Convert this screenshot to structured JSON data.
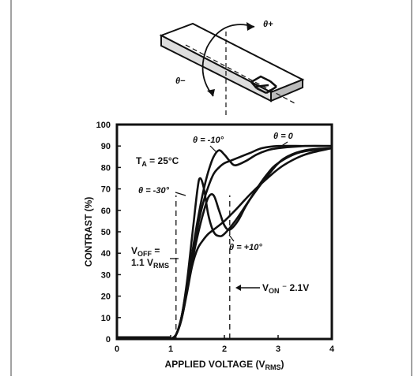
{
  "chart_data": {
    "type": "line",
    "title": "",
    "xlabel": "APPLIED VOLTAGE (V_RMS)",
    "ylabel": "CONTRAST (%)",
    "xlim": [
      0,
      4
    ],
    "ylim": [
      0,
      100
    ],
    "xticks": [
      0,
      1,
      2,
      3,
      4
    ],
    "yticks": [
      0,
      10,
      20,
      30,
      40,
      50,
      60,
      70,
      80,
      90,
      100
    ],
    "grid": false,
    "series": [
      {
        "name": "θ = -10°",
        "points": [
          [
            1.0,
            0
          ],
          [
            1.1,
            2
          ],
          [
            1.2,
            10
          ],
          [
            1.3,
            24
          ],
          [
            1.4,
            40
          ],
          [
            1.5,
            55
          ],
          [
            1.6,
            68
          ],
          [
            1.7,
            78
          ],
          [
            1.8,
            85
          ],
          [
            1.9,
            88
          ],
          [
            2.0,
            86
          ],
          [
            2.1,
            83
          ],
          [
            2.2,
            81
          ],
          [
            2.4,
            83
          ],
          [
            2.6,
            86
          ],
          [
            2.8,
            88
          ],
          [
            3.0,
            89
          ],
          [
            3.5,
            90
          ],
          [
            4.0,
            90
          ]
        ]
      },
      {
        "name": "θ = 0",
        "points": [
          [
            1.0,
            0
          ],
          [
            1.1,
            2
          ],
          [
            1.2,
            10
          ],
          [
            1.3,
            24
          ],
          [
            1.4,
            38
          ],
          [
            1.5,
            52
          ],
          [
            1.6,
            63
          ],
          [
            1.7,
            71
          ],
          [
            1.8,
            77
          ],
          [
            1.9,
            80
          ],
          [
            2.0,
            82
          ],
          [
            2.1,
            83
          ],
          [
            2.3,
            85
          ],
          [
            2.5,
            87
          ],
          [
            2.7,
            89
          ],
          [
            3.0,
            90
          ],
          [
            3.5,
            90
          ],
          [
            4.0,
            90
          ]
        ]
      },
      {
        "name": "θ = -30°",
        "points": [
          [
            1.0,
            0
          ],
          [
            1.1,
            2
          ],
          [
            1.2,
            10
          ],
          [
            1.3,
            26
          ],
          [
            1.4,
            48
          ],
          [
            1.5,
            70
          ],
          [
            1.55,
            75
          ],
          [
            1.62,
            70
          ],
          [
            1.7,
            58
          ],
          [
            1.8,
            50
          ],
          [
            1.9,
            48
          ],
          [
            2.0,
            49
          ],
          [
            2.2,
            55
          ],
          [
            2.5,
            66
          ],
          [
            2.8,
            76
          ],
          [
            3.1,
            84
          ],
          [
            3.5,
            88
          ],
          [
            4.0,
            89
          ]
        ]
      },
      {
        "name": "θ = +10°",
        "points": [
          [
            1.0,
            0
          ],
          [
            1.1,
            2
          ],
          [
            1.2,
            9
          ],
          [
            1.3,
            22
          ],
          [
            1.4,
            36
          ],
          [
            1.5,
            48
          ],
          [
            1.6,
            58
          ],
          [
            1.7,
            66
          ],
          [
            1.8,
            67
          ],
          [
            1.9,
            60
          ],
          [
            2.0,
            53
          ],
          [
            2.1,
            51
          ],
          [
            2.25,
            55
          ],
          [
            2.4,
            62
          ],
          [
            2.6,
            70
          ],
          [
            2.8,
            77
          ],
          [
            3.0,
            82
          ],
          [
            3.4,
            87
          ],
          [
            4.0,
            89
          ]
        ]
      },
      {
        "name": "",
        "points": [
          [
            1.0,
            0
          ],
          [
            1.1,
            2
          ],
          [
            1.2,
            9
          ],
          [
            1.3,
            21
          ],
          [
            1.4,
            34
          ],
          [
            1.5,
            42
          ],
          [
            1.6,
            46
          ],
          [
            1.7,
            49
          ],
          [
            1.8,
            51
          ],
          [
            2.0,
            55
          ],
          [
            2.2,
            60
          ],
          [
            2.5,
            68
          ],
          [
            2.8,
            75
          ],
          [
            3.1,
            81
          ],
          [
            3.5,
            86
          ],
          [
            4.0,
            89
          ]
        ]
      }
    ],
    "annotations": {
      "ta": "TA = 25°C",
      "voff_1": "VOFF =",
      "voff_2": "1.1 VRMS",
      "von": "VON ⁻ 2.1V",
      "theta_plus": "θ+",
      "theta_minus": "θ−"
    },
    "reference_lines": [
      {
        "x": 1.1,
        "label": "VOFF"
      },
      {
        "x": 2.1,
        "label": "VON"
      }
    ]
  }
}
